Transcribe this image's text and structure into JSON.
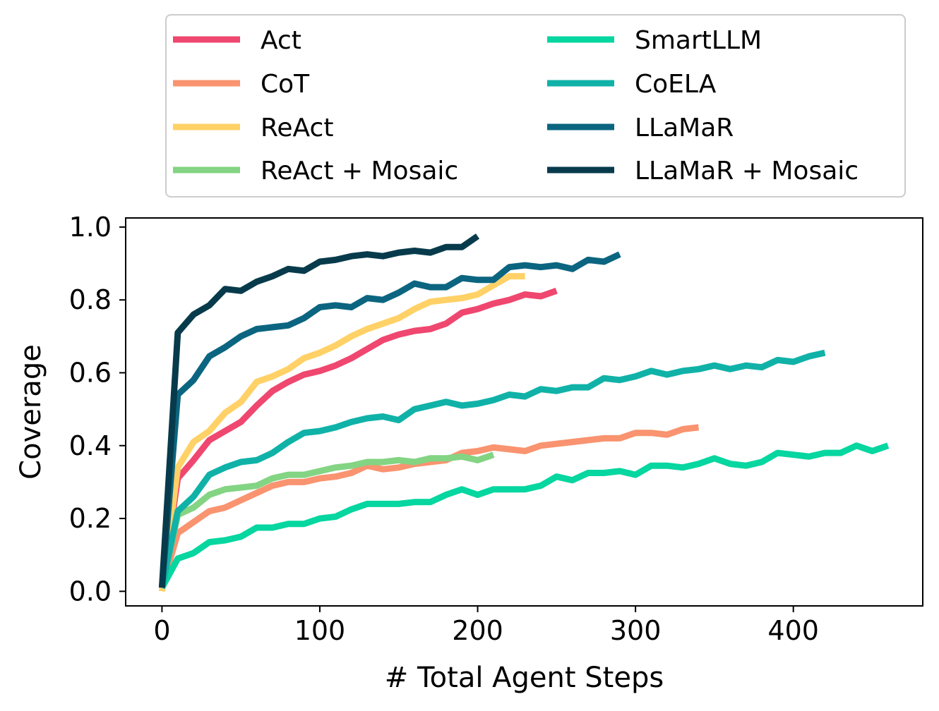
{
  "chart_data": {
    "type": "line",
    "xlabel": "# Total Agent Steps",
    "ylabel": "Coverage",
    "xlim": [
      -23,
      482
    ],
    "ylim": [
      -0.04,
      1.025
    ],
    "xticks": [
      0,
      100,
      200,
      300,
      400
    ],
    "yticks": [
      0.0,
      0.2,
      0.4,
      0.6,
      0.8,
      1.0
    ],
    "ytick_labels": [
      "0.0",
      "0.2",
      "0.4",
      "0.6",
      "0.8",
      "1.0"
    ],
    "grid": false,
    "legend_placement": "top, two columns, above plot",
    "series": [
      {
        "name": "Act",
        "color": "#ef476f",
        "x": [
          0,
          10,
          20,
          30,
          40,
          50,
          60,
          70,
          80,
          90,
          100,
          110,
          120,
          130,
          140,
          150,
          160,
          170,
          180,
          190,
          200,
          210,
          220,
          230,
          240,
          250
        ],
        "y": [
          0.01,
          0.31,
          0.36,
          0.415,
          0.44,
          0.465,
          0.51,
          0.55,
          0.575,
          0.595,
          0.605,
          0.62,
          0.64,
          0.665,
          0.69,
          0.705,
          0.715,
          0.72,
          0.735,
          0.765,
          0.775,
          0.79,
          0.8,
          0.815,
          0.81,
          0.825
        ]
      },
      {
        "name": "CoT",
        "color": "#f99370",
        "x": [
          0,
          10,
          20,
          30,
          40,
          50,
          60,
          70,
          80,
          90,
          100,
          110,
          120,
          130,
          140,
          150,
          160,
          170,
          180,
          190,
          200,
          210,
          220,
          230,
          240,
          250,
          260,
          270,
          280,
          290,
          300,
          310,
          320,
          330,
          340
        ],
        "y": [
          0.01,
          0.16,
          0.19,
          0.22,
          0.23,
          0.25,
          0.27,
          0.29,
          0.3,
          0.3,
          0.31,
          0.315,
          0.325,
          0.345,
          0.335,
          0.34,
          0.35,
          0.355,
          0.36,
          0.38,
          0.385,
          0.395,
          0.39,
          0.385,
          0.4,
          0.405,
          0.41,
          0.415,
          0.42,
          0.42,
          0.435,
          0.435,
          0.43,
          0.445,
          0.45
        ]
      },
      {
        "name": "ReAct",
        "color": "#ffd166",
        "x": [
          0,
          10,
          20,
          30,
          40,
          50,
          60,
          70,
          80,
          90,
          100,
          110,
          120,
          130,
          140,
          150,
          160,
          170,
          180,
          190,
          200,
          210,
          220,
          230
        ],
        "y": [
          0.0,
          0.34,
          0.41,
          0.44,
          0.49,
          0.52,
          0.575,
          0.59,
          0.61,
          0.64,
          0.655,
          0.675,
          0.7,
          0.72,
          0.735,
          0.75,
          0.775,
          0.795,
          0.8,
          0.805,
          0.815,
          0.84,
          0.865,
          0.865
        ]
      },
      {
        "name": "ReAct + Mosaic",
        "color": "#83d483",
        "x": [
          0,
          10,
          20,
          30,
          40,
          50,
          60,
          70,
          80,
          90,
          100,
          110,
          120,
          130,
          140,
          150,
          160,
          170,
          180,
          190,
          200,
          210
        ],
        "y": [
          0.01,
          0.21,
          0.23,
          0.265,
          0.28,
          0.285,
          0.29,
          0.31,
          0.32,
          0.32,
          0.33,
          0.34,
          0.345,
          0.355,
          0.355,
          0.36,
          0.355,
          0.365,
          0.365,
          0.37,
          0.36,
          0.375
        ]
      },
      {
        "name": "SmartLLM",
        "color": "#06d6a0",
        "x": [
          0,
          10,
          20,
          30,
          40,
          50,
          60,
          70,
          80,
          90,
          100,
          110,
          120,
          130,
          140,
          150,
          160,
          170,
          180,
          190,
          200,
          210,
          220,
          230,
          240,
          250,
          260,
          270,
          280,
          290,
          300,
          310,
          320,
          330,
          340,
          350,
          360,
          370,
          380,
          390,
          400,
          410,
          420,
          430,
          440,
          450,
          460
        ],
        "y": [
          0.01,
          0.09,
          0.105,
          0.135,
          0.14,
          0.15,
          0.175,
          0.175,
          0.185,
          0.185,
          0.2,
          0.205,
          0.225,
          0.24,
          0.24,
          0.24,
          0.245,
          0.245,
          0.265,
          0.28,
          0.265,
          0.28,
          0.28,
          0.28,
          0.29,
          0.315,
          0.305,
          0.325,
          0.325,
          0.33,
          0.32,
          0.345,
          0.345,
          0.34,
          0.35,
          0.365,
          0.35,
          0.345,
          0.355,
          0.38,
          0.375,
          0.37,
          0.38,
          0.38,
          0.4,
          0.385,
          0.4
        ]
      },
      {
        "name": "CoELA",
        "color": "#118ab2",
        "stroke": "#10b2a8",
        "x": [
          0,
          10,
          20,
          30,
          40,
          50,
          60,
          70,
          80,
          90,
          100,
          110,
          120,
          130,
          140,
          150,
          160,
          170,
          180,
          190,
          200,
          210,
          220,
          230,
          240,
          250,
          260,
          270,
          280,
          290,
          300,
          310,
          320,
          330,
          340,
          350,
          360,
          370,
          380,
          390,
          400,
          410,
          420
        ],
        "y": [
          0.01,
          0.22,
          0.26,
          0.32,
          0.34,
          0.355,
          0.36,
          0.38,
          0.41,
          0.435,
          0.44,
          0.45,
          0.465,
          0.475,
          0.48,
          0.47,
          0.5,
          0.51,
          0.52,
          0.51,
          0.515,
          0.525,
          0.54,
          0.535,
          0.555,
          0.55,
          0.56,
          0.56,
          0.585,
          0.58,
          0.59,
          0.605,
          0.595,
          0.605,
          0.61,
          0.62,
          0.61,
          0.62,
          0.615,
          0.635,
          0.63,
          0.645,
          0.655
        ]
      },
      {
        "name": "LLaMaR",
        "color": "#0b6580",
        "x": [
          0,
          10,
          20,
          30,
          40,
          50,
          60,
          70,
          80,
          90,
          100,
          110,
          120,
          130,
          140,
          150,
          160,
          170,
          180,
          190,
          200,
          210,
          220,
          230,
          240,
          250,
          260,
          270,
          280,
          290
        ],
        "y": [
          0.01,
          0.54,
          0.58,
          0.645,
          0.67,
          0.7,
          0.72,
          0.725,
          0.73,
          0.75,
          0.78,
          0.785,
          0.78,
          0.805,
          0.8,
          0.82,
          0.845,
          0.835,
          0.835,
          0.86,
          0.855,
          0.855,
          0.89,
          0.895,
          0.89,
          0.895,
          0.885,
          0.91,
          0.905,
          0.925
        ]
      },
      {
        "name": "LLaMaR + Mosaic",
        "color": "#073b4c",
        "x": [
          0,
          10,
          20,
          30,
          40,
          50,
          60,
          70,
          80,
          90,
          100,
          110,
          120,
          130,
          140,
          150,
          160,
          170,
          180,
          190,
          200
        ],
        "y": [
          0.01,
          0.71,
          0.76,
          0.785,
          0.83,
          0.825,
          0.85,
          0.865,
          0.885,
          0.88,
          0.905,
          0.91,
          0.92,
          0.925,
          0.92,
          0.93,
          0.935,
          0.93,
          0.945,
          0.945,
          0.975
        ]
      }
    ]
  }
}
